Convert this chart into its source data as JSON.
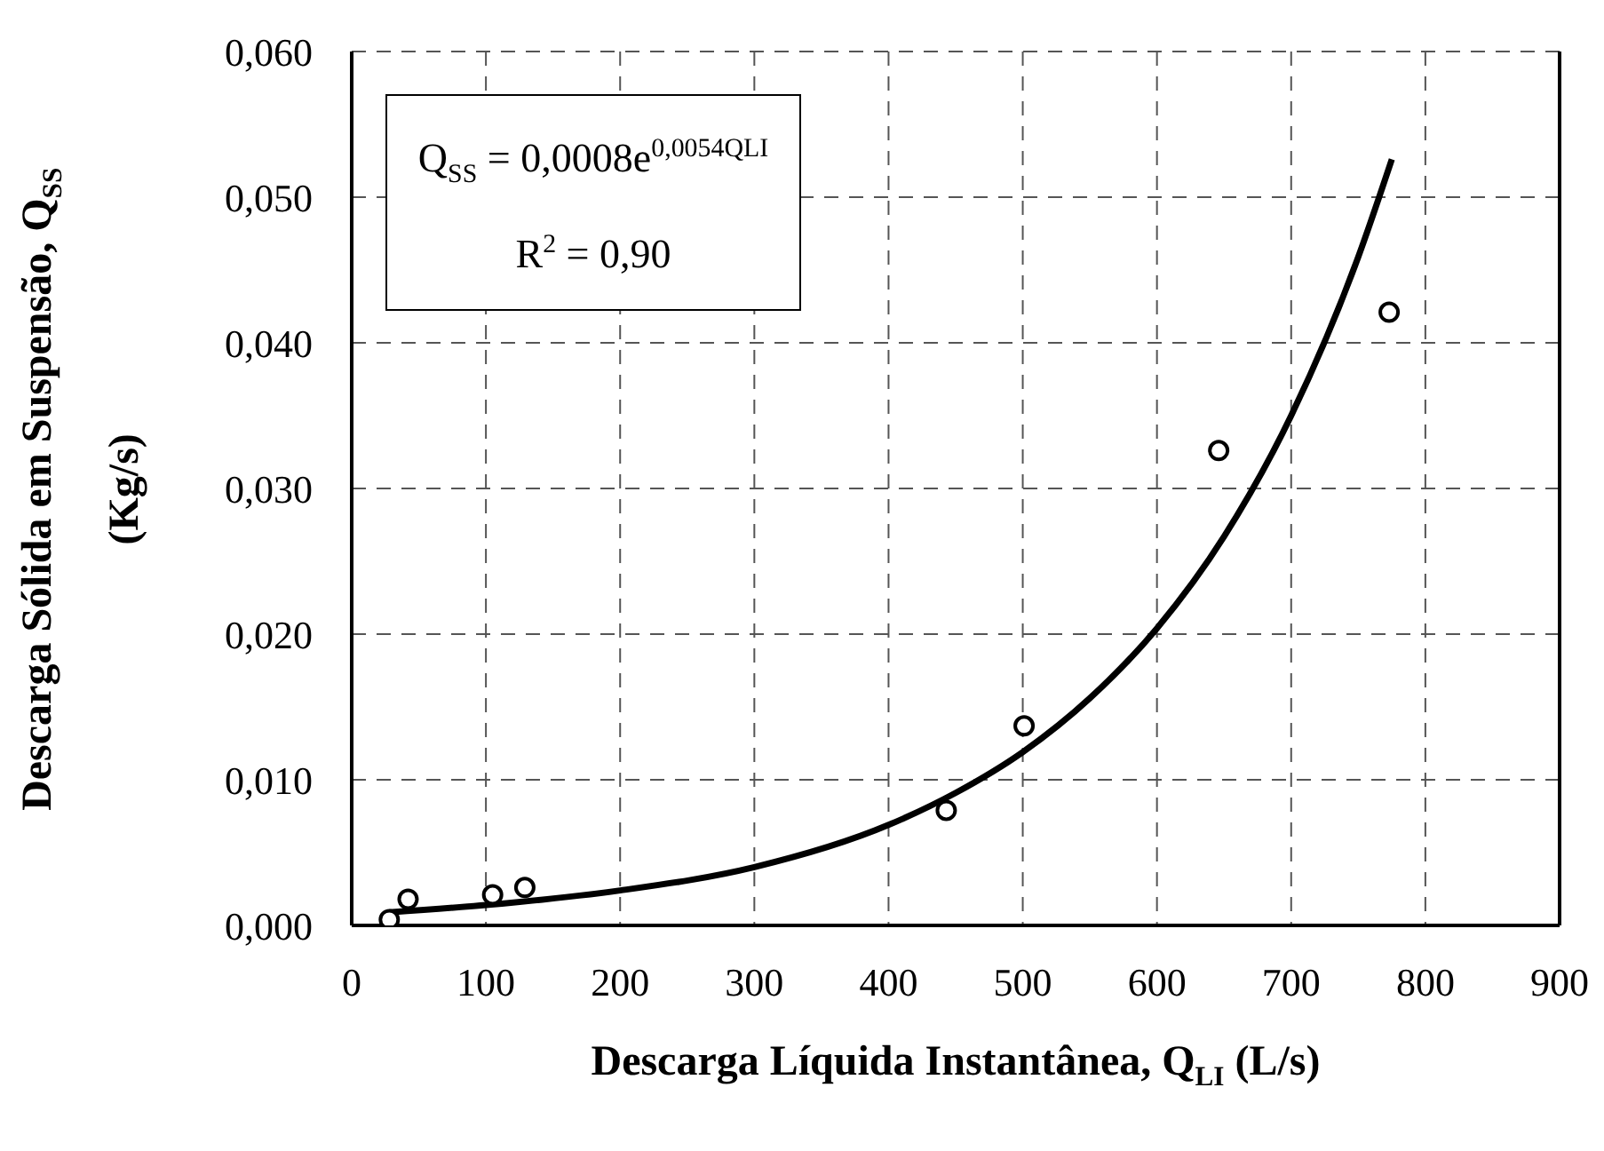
{
  "chart_data": {
    "type": "scatter",
    "xlabel": "Descarga Líquida Instantânea, Q$_{LI}$ (L/s)",
    "ylabel": "Descarga Sólida em Suspensão, Q$_{SS}$ (Kg/s)",
    "annotations": [
      "Q$_{SS}$ = 0,0008e$^{0,0054QLI}$",
      "R$^{2}$ = 0,90"
    ],
    "series": [
      {
        "color": "#000000",
        "marker": "circle",
        "x": [
          28,
          42,
          105,
          129,
          443,
          501,
          646,
          773
        ],
        "values": [
          0.0004,
          0.0018,
          0.0021,
          0.0026,
          0.0079,
          0.0137,
          0.0326,
          0.0421
        ]
      },
      {
        "type": "line",
        "color": "#000000",
        "line_style": "solid",
        "x": [
          28,
          100,
          200,
          300,
          400,
          450,
          500,
          550,
          600,
          650,
          700,
          750,
          775
        ],
        "values": [
          0.0009,
          0.0014,
          0.0024,
          0.004,
          0.0069,
          0.0091,
          0.0119,
          0.0156,
          0.0204,
          0.0267,
          0.035,
          0.0459,
          0.0526
        ]
      }
    ],
    "xlim": [
      0,
      900
    ],
    "xticks": [
      0,
      100,
      200,
      300,
      400,
      500,
      600,
      700,
      800,
      900
    ],
    "ylim": [
      0,
      0.06
    ],
    "yticks": [
      {
        "value": 0,
        "label": "0,000"
      },
      {
        "value": 0.01,
        "label": "0,010"
      },
      {
        "value": 0.02,
        "label": "0,020"
      },
      {
        "value": 0.03,
        "label": "0,030"
      },
      {
        "value": 0.04,
        "label": "0,040"
      },
      {
        "value": 0.05,
        "label": "0,050"
      },
      {
        "value": 0.06,
        "label": "0,060"
      }
    ],
    "grid": true
  }
}
